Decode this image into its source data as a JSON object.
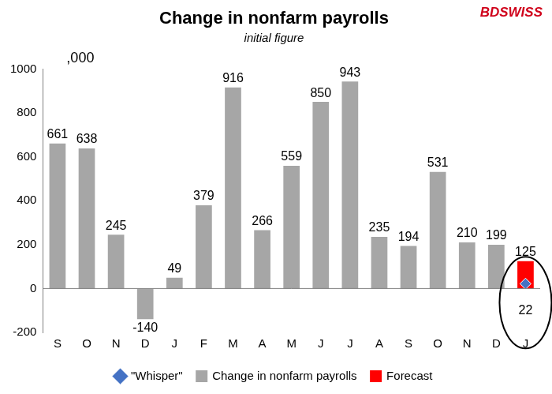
{
  "chart_data": {
    "type": "bar",
    "title": "Change in nonfarm payrolls",
    "subtitle": "initial figure",
    "annotations": [
      ",000",
      "BDSWISS"
    ],
    "categories": [
      "S",
      "O",
      "N",
      "D",
      "J",
      "F",
      "M",
      "A",
      "M",
      "J",
      "J",
      "A",
      "S",
      "O",
      "N",
      "D",
      "J"
    ],
    "series": [
      {
        "name": "Change in nonfarm payrolls",
        "color": "#a6a6a6",
        "type": "bar",
        "values": [
          661,
          638,
          245,
          -140,
          49,
          379,
          916,
          266,
          559,
          850,
          943,
          235,
          194,
          531,
          210,
          199,
          null
        ]
      },
      {
        "name": "Forecast",
        "color": "#ff0000",
        "type": "bar",
        "values": [
          null,
          null,
          null,
          null,
          null,
          null,
          null,
          null,
          null,
          null,
          null,
          null,
          null,
          null,
          null,
          null,
          125
        ]
      },
      {
        "name": "\"Whisper\"",
        "color": "#4472c4",
        "type": "scatter",
        "marker": "diamond",
        "values": [
          null,
          null,
          null,
          null,
          null,
          null,
          null,
          null,
          null,
          null,
          null,
          null,
          null,
          null,
          null,
          null,
          22
        ]
      }
    ],
    "ylim": [
      -200,
      1000
    ],
    "yticks": [
      -200,
      0,
      200,
      400,
      600,
      800,
      1000
    ],
    "grid": false,
    "legend": "bottom",
    "data_labels": true
  }
}
